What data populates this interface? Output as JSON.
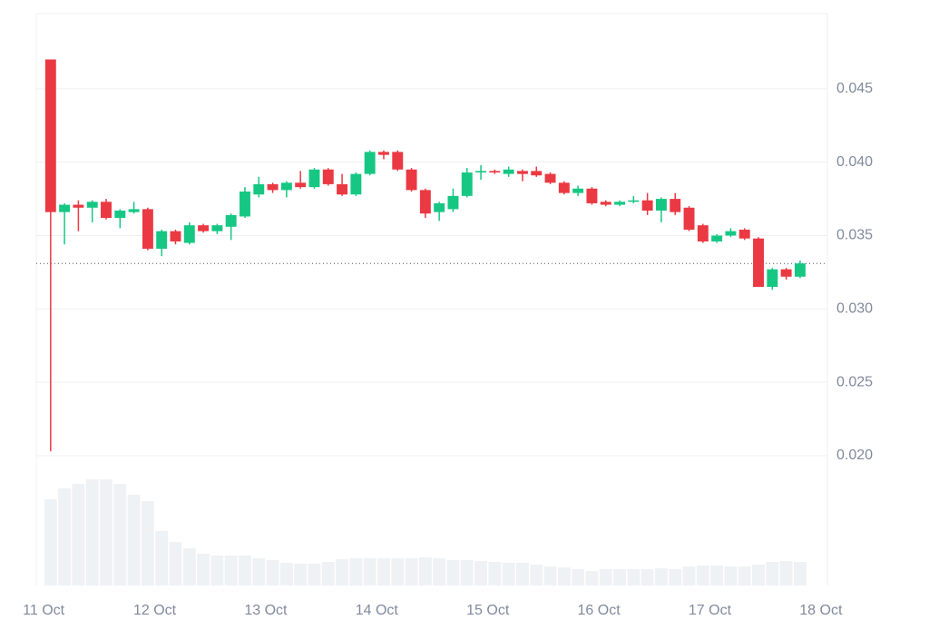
{
  "chart_data": {
    "type": "candlestick",
    "x": [
      1.5,
      4.5,
      7.5,
      10.5,
      13.5,
      16.5,
      19.5,
      22.5,
      25.5,
      28.5,
      31.5,
      34.5,
      37.5,
      40.5,
      43.5,
      46.5,
      49.5,
      52.5,
      55.5,
      58.5,
      61.5,
      64.5,
      67.5,
      70.5,
      73.5,
      76.5,
      79.5,
      82.5,
      85.5,
      88.5,
      91.5,
      94.5,
      97.5,
      100.5,
      103.5,
      106.5,
      109.5,
      112.5,
      115.5,
      118.5,
      121.5,
      124.5,
      127.5,
      130.5,
      133.5,
      136.5,
      139.5,
      142.5,
      145.5,
      148.5,
      151.5,
      154.5,
      157.5,
      160.5,
      163.5
    ],
    "open": [
      0.047,
      0.0366,
      0.0371,
      0.0369,
      0.0373,
      0.0362,
      0.0366,
      0.0368,
      0.0341,
      0.0353,
      0.0345,
      0.0357,
      0.0353,
      0.0356,
      0.0363,
      0.0378,
      0.0385,
      0.0381,
      0.0386,
      0.0383,
      0.0395,
      0.0385,
      0.0378,
      0.0392,
      0.0407,
      0.0407,
      0.0395,
      0.0381,
      0.0366,
      0.0368,
      0.0377,
      0.0393,
      0.0394,
      0.0392,
      0.0394,
      0.0394,
      0.0392,
      0.0386,
      0.0379,
      0.0382,
      0.0373,
      0.0371,
      0.0373,
      0.0374,
      0.0367,
      0.0375,
      0.0369,
      0.0357,
      0.0346,
      0.035,
      0.0354,
      0.0348,
      0.0315,
      0.0327,
      0.0322
    ],
    "high": [
      0.047,
      0.0372,
      0.0374,
      0.0374,
      0.0375,
      0.0368,
      0.0373,
      0.0369,
      0.0354,
      0.0354,
      0.0359,
      0.0358,
      0.0358,
      0.0365,
      0.0383,
      0.039,
      0.0386,
      0.0387,
      0.0394,
      0.0396,
      0.0396,
      0.0392,
      0.0393,
      0.0408,
      0.0408,
      0.0408,
      0.0396,
      0.0382,
      0.0373,
      0.0382,
      0.0396,
      0.0398,
      0.0395,
      0.0397,
      0.0395,
      0.0397,
      0.0393,
      0.0387,
      0.0384,
      0.0383,
      0.0374,
      0.0374,
      0.0377,
      0.0379,
      0.0376,
      0.0379,
      0.037,
      0.0358,
      0.0351,
      0.0355,
      0.0355,
      0.0349,
      0.0328,
      0.0328,
      0.0333
    ],
    "low": [
      0.0203,
      0.0344,
      0.0353,
      0.0359,
      0.0361,
      0.0355,
      0.0365,
      0.034,
      0.0336,
      0.0344,
      0.0344,
      0.0352,
      0.0351,
      0.0347,
      0.0362,
      0.0376,
      0.0379,
      0.0376,
      0.0382,
      0.0382,
      0.0384,
      0.0377,
      0.0377,
      0.0391,
      0.0402,
      0.0394,
      0.038,
      0.0362,
      0.036,
      0.0366,
      0.0376,
      0.0388,
      0.0392,
      0.039,
      0.0387,
      0.039,
      0.0385,
      0.0378,
      0.0377,
      0.0371,
      0.037,
      0.037,
      0.0372,
      0.0364,
      0.0359,
      0.0364,
      0.0353,
      0.0345,
      0.0345,
      0.0349,
      0.0347,
      0.0315,
      0.0313,
      0.032,
      0.0321
    ],
    "close": [
      0.0366,
      0.0371,
      0.0369,
      0.0373,
      0.0362,
      0.0367,
      0.0368,
      0.0341,
      0.0353,
      0.0346,
      0.0357,
      0.0353,
      0.0357,
      0.0364,
      0.038,
      0.0385,
      0.0381,
      0.0386,
      0.0383,
      0.0395,
      0.0385,
      0.0378,
      0.0392,
      0.0407,
      0.0405,
      0.0395,
      0.0381,
      0.0365,
      0.0372,
      0.0377,
      0.0393,
      0.0394,
      0.0393,
      0.0395,
      0.0392,
      0.0391,
      0.0386,
      0.0379,
      0.0382,
      0.0372,
      0.0371,
      0.0373,
      0.0374,
      0.0367,
      0.0375,
      0.0366,
      0.0354,
      0.0346,
      0.035,
      0.0353,
      0.0348,
      0.0315,
      0.0327,
      0.0322,
      0.0331
    ],
    "up_color": "#16c784",
    "down_color": "#ea3943",
    "volume": {
      "values": [
        95,
        107,
        112,
        117,
        117,
        112,
        100,
        93,
        60,
        48,
        41,
        35,
        33,
        33,
        33,
        30,
        28,
        25,
        24,
        24,
        26,
        29,
        30,
        30,
        30,
        30,
        30,
        31,
        30,
        28,
        28,
        27,
        26,
        25,
        25,
        23,
        21,
        20,
        18,
        16,
        18,
        18,
        18,
        18,
        19,
        18,
        21,
        22,
        22,
        21,
        21,
        23,
        26,
        27,
        26
      ],
      "color": "#eff2f5",
      "ylim": [
        0,
        130
      ]
    },
    "last_price": 0.0331,
    "xlim": [
      -1.6,
      169.4
    ],
    "xticks": [
      {
        "value": 0,
        "label": "11 Oct"
      },
      {
        "value": 24,
        "label": "12 Oct"
      },
      {
        "value": 48,
        "label": "13 Oct"
      },
      {
        "value": 72,
        "label": "14 Oct"
      },
      {
        "value": 96,
        "label": "15 Oct"
      },
      {
        "value": 120,
        "label": "16 Oct"
      },
      {
        "value": 144,
        "label": "17 Oct"
      },
      {
        "value": 168,
        "label": "18 Oct"
      }
    ],
    "ylim": [
      0.02,
      0.05
    ],
    "yticks": [
      {
        "value": 0.02,
        "label": "0.020"
      },
      0.025,
      {
        "value": 0.03,
        "label": "0.030"
      },
      0.035,
      {
        "value": 0.04,
        "label": "0.040"
      },
      0.045
    ],
    "grid": true
  }
}
